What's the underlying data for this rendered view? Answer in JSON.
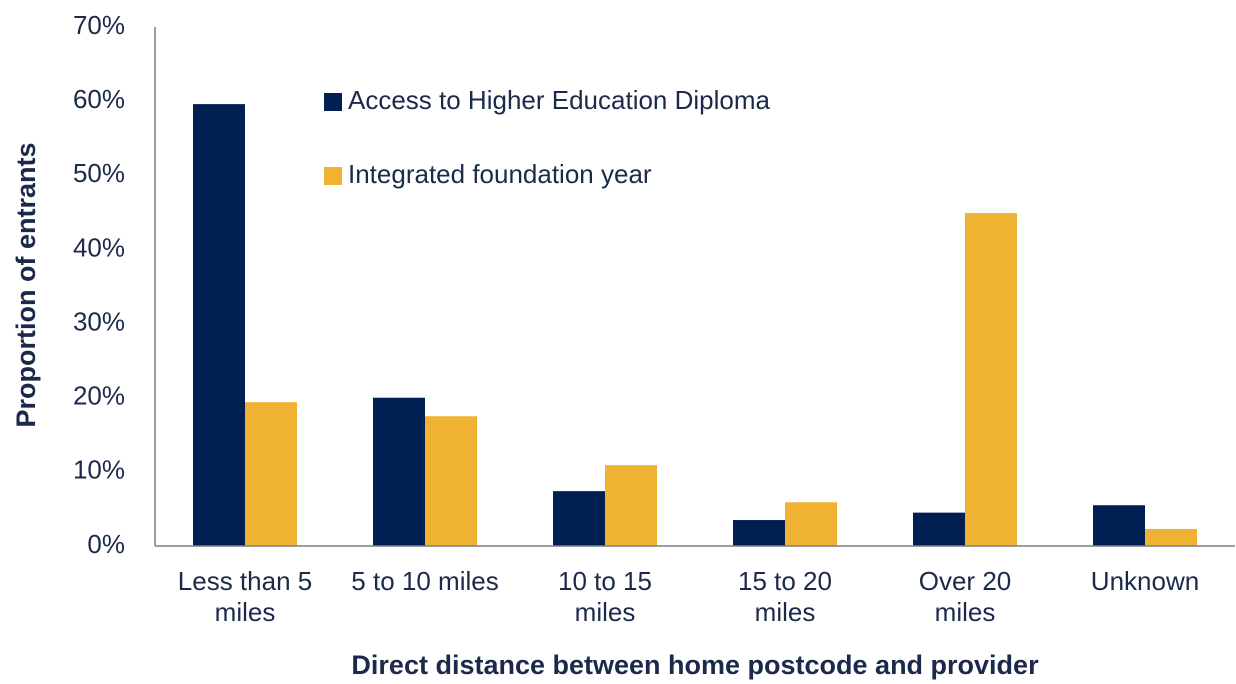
{
  "chart_data": {
    "type": "bar",
    "x_label": "Direct distance between home postcode and provider",
    "y_label": "Proportion of entrants",
    "categories": [
      "Less than 5 miles",
      "5 to 10 miles",
      "10 to 15 miles",
      "15 to 20 miles",
      "Over 20 miles",
      "Unknown"
    ],
    "series": [
      {
        "name": "Access to Higher Education Diploma",
        "color": "#002052",
        "values": [
          59.6,
          20,
          7.4,
          3.5,
          4.5,
          5.5
        ]
      },
      {
        "name": "Integrated foundation year",
        "color": "#f0b232",
        "values": [
          19.4,
          17.5,
          10.9,
          5.9,
          44.9,
          2.3
        ]
      }
    ],
    "ylim": [
      0,
      70
    ],
    "yticks": [
      {
        "value": 0,
        "label": "0%"
      },
      {
        "value": 10,
        "label": "10%"
      },
      {
        "value": 20,
        "label": "20%"
      },
      {
        "value": 30,
        "label": "30%"
      },
      {
        "value": 40,
        "label": "40%"
      },
      {
        "value": 50,
        "label": "50%"
      },
      {
        "value": 60,
        "label": "60%"
      },
      {
        "value": 70,
        "label": "70%"
      }
    ],
    "grid": false
  }
}
